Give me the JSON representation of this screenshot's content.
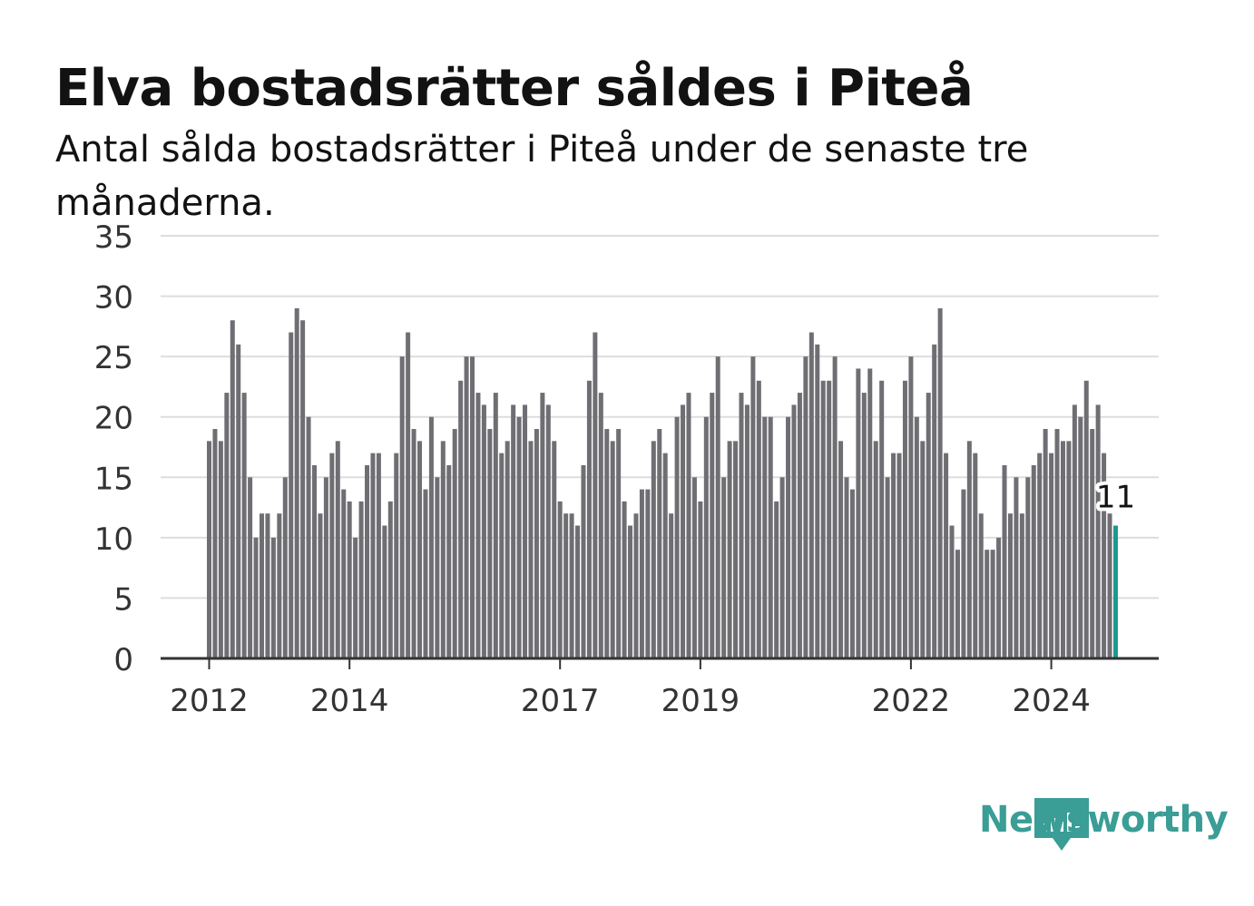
{
  "header": {
    "title": "Elva bostadsrätter såldes i Piteå",
    "subtitle": "Antal sålda bostadsrätter i Piteå under de senaste tre månaderna."
  },
  "branding": {
    "logo_icon": "bar-chart-speech-bubble-icon",
    "logo_text": "Newsworthy",
    "color": "#3a9d96"
  },
  "chart_data": {
    "type": "bar",
    "title": "Elva bostadsrätter såldes i Piteå",
    "subtitle": "Antal sålda bostadsrätter i Piteå under de senaste tre månaderna.",
    "xlabel": "",
    "ylabel": "",
    "ylim": [
      0,
      35
    ],
    "yticks": [
      0,
      5,
      10,
      15,
      20,
      25,
      30,
      35
    ],
    "xticks": [
      "2012",
      "2014",
      "2017",
      "2019",
      "2022",
      "2024"
    ],
    "x_start": "2012-01",
    "x_end": "2024-12",
    "grid": true,
    "colors": {
      "bars": "#6e6e73",
      "highlight": "#1a9a8f",
      "grid": "#dddddd",
      "axis": "#333333"
    },
    "highlight_label": "11",
    "series": [
      {
        "values": [
          18,
          19,
          18,
          22,
          28,
          26,
          22,
          15,
          10,
          12,
          12,
          10,
          12,
          15,
          27,
          29,
          28,
          20,
          16,
          12,
          15,
          17,
          18,
          14,
          13,
          10,
          13,
          16,
          17,
          17,
          11,
          13,
          17,
          25,
          27,
          19,
          18,
          14,
          20,
          15,
          18,
          16,
          19,
          23,
          25,
          25,
          22,
          21,
          19,
          22,
          17,
          18,
          21,
          20,
          21,
          18,
          19,
          22,
          21,
          18,
          13,
          12,
          12,
          11,
          16,
          23,
          27,
          22,
          19,
          18,
          19,
          13,
          11,
          12,
          14,
          14,
          18,
          19,
          17,
          12,
          20,
          21,
          22,
          15,
          13,
          20,
          22,
          25,
          15,
          18,
          18,
          22,
          21,
          25,
          23,
          20,
          20,
          13,
          15,
          20,
          21,
          22,
          25,
          27,
          26,
          23,
          23,
          25,
          18,
          15,
          14,
          24,
          22,
          24,
          18,
          23,
          15,
          17,
          17,
          23,
          25,
          20,
          18,
          22,
          26,
          29,
          17,
          11,
          9,
          14,
          18,
          17,
          12,
          9,
          9,
          10,
          16,
          12,
          15,
          12,
          15,
          16,
          17,
          19,
          17,
          19,
          18,
          18,
          21,
          20,
          23,
          19,
          21,
          17,
          12,
          11
        ]
      }
    ]
  }
}
